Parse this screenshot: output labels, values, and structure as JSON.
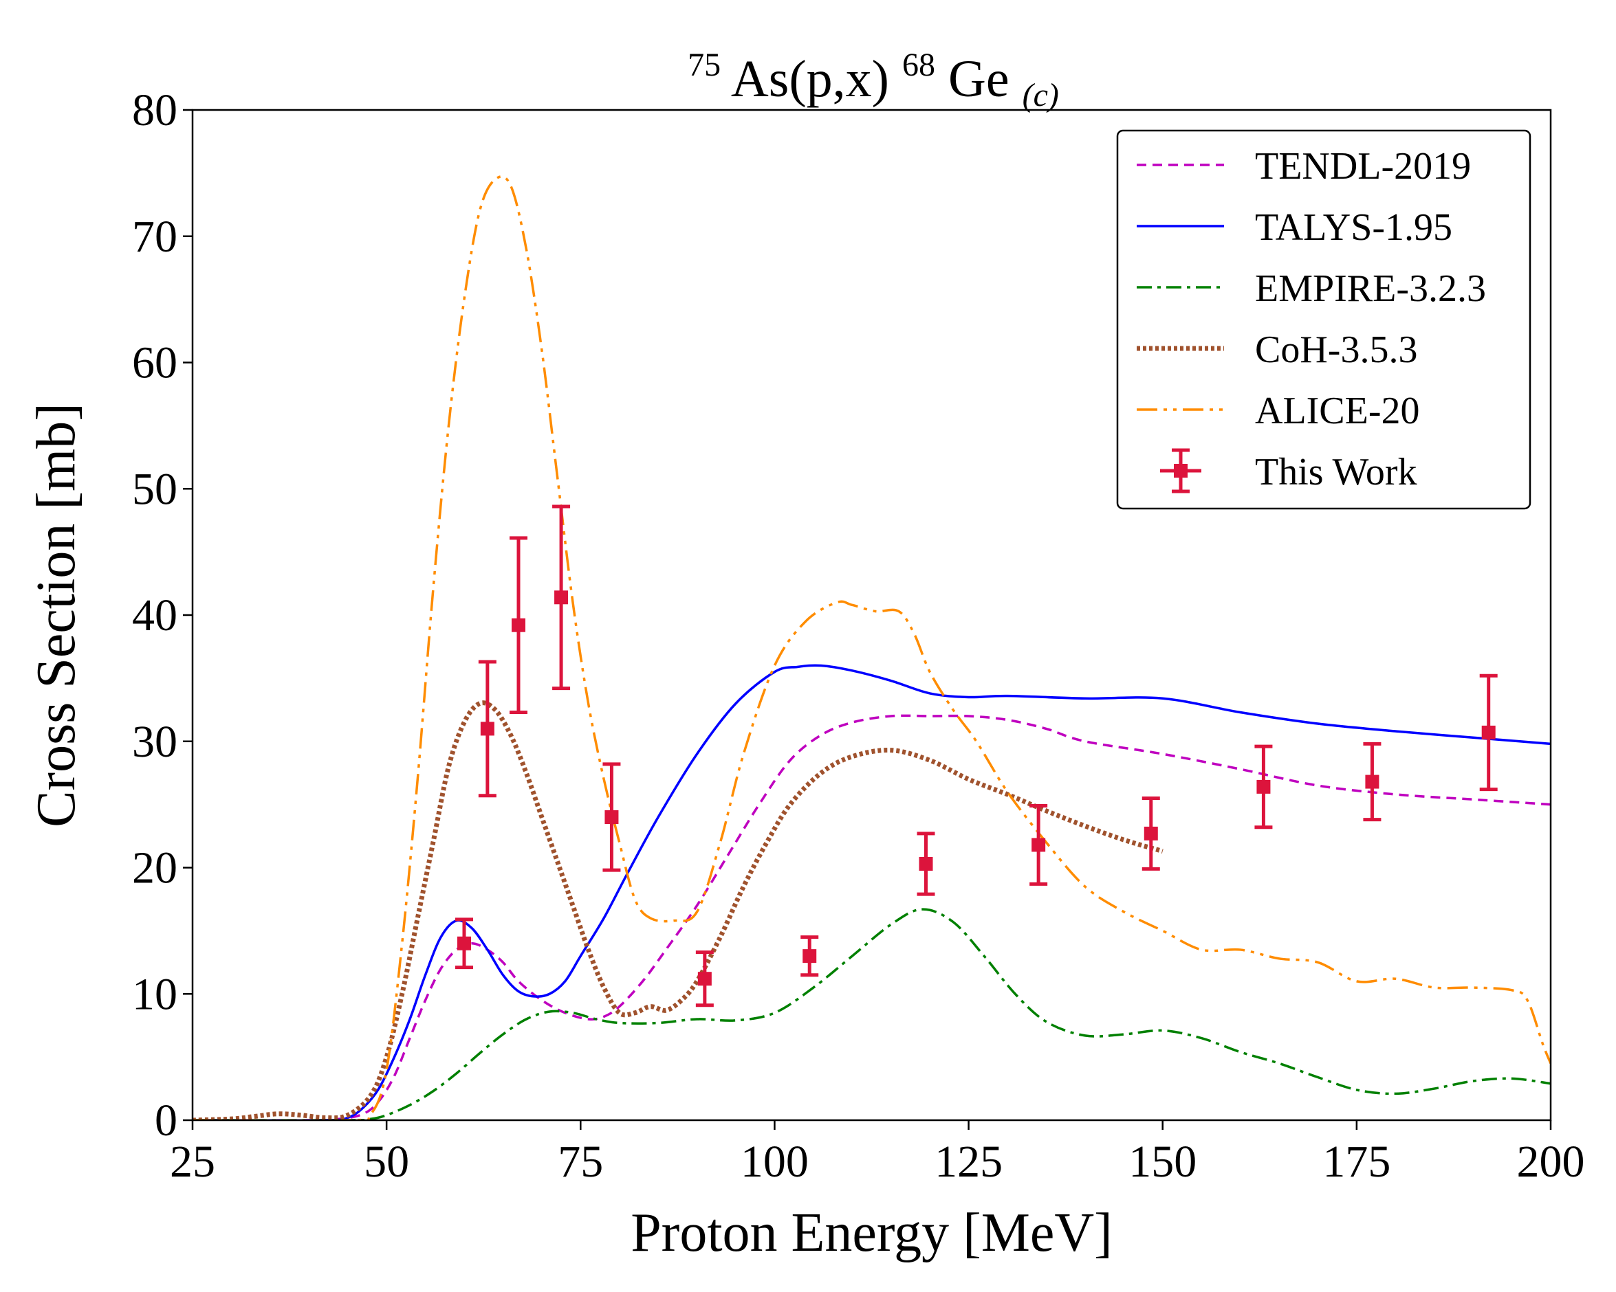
{
  "chart_data": {
    "type": "line",
    "title": {
      "prefix_sup": "75",
      "main": "As(p,x)",
      "mid_sup": "68",
      "element": "Ge",
      "sub": "(c)"
    },
    "xlabel": "Proton Energy [MeV]",
    "ylabel": "Cross Section [mb]",
    "xlim": [
      25,
      200
    ],
    "ylim": [
      0,
      80
    ],
    "xticks": [
      25,
      50,
      75,
      100,
      125,
      150,
      175,
      200
    ],
    "yticks": [
      0,
      10,
      20,
      30,
      40,
      50,
      60,
      70,
      80
    ],
    "grid": false,
    "legend_position": "top-right",
    "series": [
      {
        "name": "TENDL-2019",
        "color": "#bf00bf",
        "style": "dashed",
        "x": [
          25,
          40,
          44,
          47,
          49,
          51,
          53,
          55,
          57,
          59,
          61,
          63,
          65,
          67,
          70,
          73,
          76,
          78,
          80,
          83,
          86,
          90,
          94,
          98,
          102,
          106,
          110,
          115,
          120,
          125,
          130,
          135,
          140,
          150,
          160,
          170,
          180,
          190,
          200
        ],
        "y": [
          0,
          0,
          0.1,
          0.5,
          1.5,
          3.5,
          6.5,
          9.5,
          12,
          13.5,
          14,
          13.5,
          12.5,
          11,
          9.5,
          8.5,
          8,
          8.2,
          9,
          11,
          13.5,
          17,
          21,
          25,
          28.5,
          30.5,
          31.5,
          32,
          32,
          32,
          31.7,
          31,
          30,
          29,
          27.8,
          26.5,
          25.8,
          25.4,
          25
        ]
      },
      {
        "name": "TALYS-1.95",
        "color": "#0000ff",
        "style": "solid",
        "x": [
          25,
          42,
          45,
          47,
          49,
          51,
          53,
          55,
          57,
          59,
          61,
          63,
          65,
          67,
          69,
          71,
          73,
          75,
          78,
          81,
          85,
          90,
          95,
          100,
          103,
          106,
          110,
          115,
          120,
          125,
          130,
          140,
          150,
          160,
          170,
          180,
          190,
          200
        ],
        "y": [
          0,
          0,
          0.2,
          1,
          2.5,
          5,
          8,
          11.5,
          14.5,
          15.8,
          15.2,
          13.5,
          11.5,
          10.2,
          9.8,
          10,
          11,
          13,
          16,
          19.5,
          24,
          29,
          33,
          35.5,
          35.9,
          36,
          35.6,
          34.8,
          33.8,
          33.5,
          33.6,
          33.4,
          33.4,
          32.3,
          31.4,
          30.8,
          30.3,
          29.8
        ]
      },
      {
        "name": "EMPIRE-3.2.3",
        "color": "#008000",
        "style": "dashdot",
        "x": [
          25,
          45,
          48,
          50,
          53,
          56,
          59,
          62,
          65,
          68,
          71,
          74,
          77,
          80,
          85,
          90,
          95,
          100,
          105,
          110,
          115,
          119,
          123,
          127,
          131,
          135,
          140,
          145,
          150,
          155,
          160,
          165,
          170,
          175,
          180,
          185,
          190,
          195,
          200
        ],
        "y": [
          0,
          0,
          0.1,
          0.4,
          1.2,
          2.3,
          3.7,
          5.3,
          6.8,
          8,
          8.6,
          8.5,
          8,
          7.7,
          7.7,
          8,
          7.9,
          8.5,
          10.5,
          13,
          15.5,
          16.7,
          15.7,
          13,
          10,
          7.8,
          6.7,
          6.8,
          7.1,
          6.5,
          5.4,
          4.5,
          3.4,
          2.4,
          2.1,
          2.5,
          3.1,
          3.3,
          2.9
        ]
      },
      {
        "name": "CoH-3.5.3",
        "color": "#a0522d",
        "style": "dotted",
        "x": [
          25,
          30,
          33,
          36,
          39,
          42,
          45,
          48,
          50,
          52,
          54,
          56,
          58,
          60,
          62,
          64,
          66,
          68,
          70,
          72,
          74,
          76,
          78,
          80,
          82,
          84,
          86,
          88,
          90,
          93,
          96,
          99,
          102,
          106,
          110,
          115,
          120,
          125,
          130,
          135,
          140,
          145,
          150
        ],
        "y": [
          0,
          0.1,
          0.3,
          0.5,
          0.4,
          0.2,
          0.4,
          2,
          5,
          10,
          16,
          22,
          28,
          31.5,
          33,
          32.5,
          30.5,
          27.5,
          24,
          20.5,
          17,
          13.5,
          10.5,
          8.5,
          8.5,
          9,
          8.7,
          9.5,
          11,
          14.5,
          18.5,
          22,
          25,
          27.5,
          28.8,
          29.3,
          28.5,
          27,
          25.8,
          24.5,
          23.3,
          22.2,
          21.3
        ]
      },
      {
        "name": "ALICE-20",
        "color": "#ff8c00",
        "style": "dashdotdot",
        "x": [
          25,
          45,
          48,
          50,
          52,
          54,
          56,
          58,
          60,
          62,
          64,
          66,
          68,
          70,
          72,
          74,
          76,
          78,
          80,
          82,
          84,
          87,
          90,
          93,
          96,
          100,
          104,
          108,
          110,
          113,
          116,
          118,
          120,
          123,
          126,
          130,
          135,
          140,
          145,
          150,
          155,
          160,
          165,
          170,
          175,
          180,
          185,
          190,
          195,
          197,
          199,
          200
        ],
        "y": [
          0,
          0,
          0.5,
          4,
          14,
          27,
          42,
          55,
          65,
          72,
          74.5,
          74,
          69,
          61,
          51,
          41,
          33,
          27,
          22,
          17.5,
          16,
          15.8,
          16.5,
          22,
          29,
          36,
          39.5,
          41,
          40.8,
          40.3,
          40.3,
          38.5,
          35.5,
          32.5,
          30,
          26,
          22,
          18.5,
          16.5,
          15,
          13.5,
          13.5,
          12.8,
          12.5,
          11,
          11.2,
          10.5,
          10.5,
          10.3,
          9.5,
          6,
          4.5
        ]
      }
    ],
    "experimental": {
      "name": "This Work",
      "color": "#dc143c",
      "x": [
        60,
        63,
        67,
        72.5,
        79,
        91,
        104.5,
        119.5,
        134,
        148.5,
        163,
        177,
        192
      ],
      "y": [
        14,
        31,
        39.2,
        41.4,
        24,
        11.2,
        13,
        20.3,
        21.8,
        22.7,
        26.4,
        26.8,
        30.7
      ],
      "yerr": [
        1.9,
        5.3,
        6.9,
        7.2,
        4.2,
        2.1,
        1.5,
        2.4,
        3.1,
        2.8,
        3.2,
        3.0,
        4.5
      ],
      "xerr": [
        0.6,
        0.5,
        0.5,
        0.5,
        0.5,
        0.5,
        0.6,
        0.6,
        0.5,
        0.5,
        0.5,
        0.5,
        0.6
      ]
    }
  }
}
